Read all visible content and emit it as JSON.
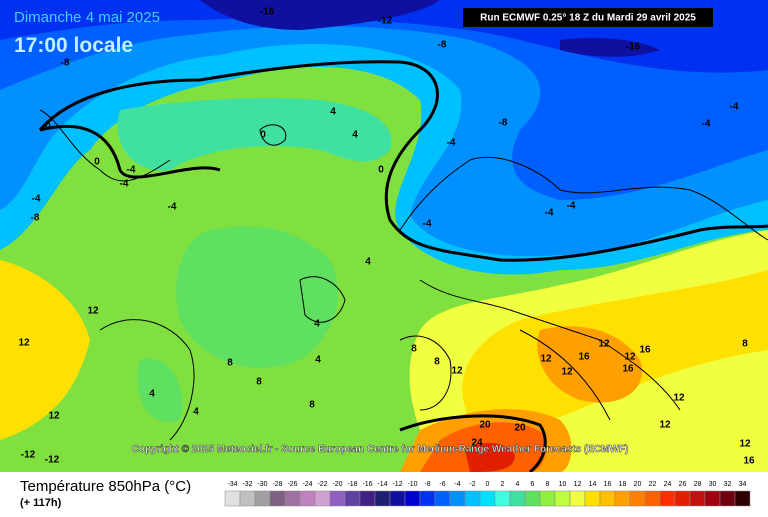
{
  "header": {
    "date": "Dimanche 4 mai 2025",
    "time": "17:00 locale",
    "run": "Run ECMWF 0.25° 18 Z du Mardi 29 avril 2025"
  },
  "copyright": "Copyright © 2025 Meteociel.fr - Source European Centre for Medium-Range Weather Forecasts (ECMWF)",
  "legend": {
    "title": "Température 850hPa (°C)",
    "lead": "(+ 117h)",
    "values": [
      -34,
      -32,
      -30,
      -28,
      -26,
      -24,
      -22,
      -20,
      -18,
      -16,
      -14,
      -12,
      -10,
      -8,
      -6,
      -4,
      -2,
      0,
      2,
      4,
      6,
      8,
      10,
      12,
      14,
      16,
      18,
      20,
      22,
      24,
      26,
      28,
      30,
      32,
      34
    ],
    "colors": [
      "#e0e0e0",
      "#c0c0c0",
      "#a0a0a0",
      "#806080",
      "#a070a0",
      "#c080c0",
      "#d0a0d0",
      "#9060c0",
      "#6040a0",
      "#402080",
      "#202070",
      "#1010a0",
      "#0000d0",
      "#0030f0",
      "#0060ff",
      "#0090ff",
      "#00c0ff",
      "#00e0ff",
      "#40ffe0",
      "#40e0a0",
      "#60e060",
      "#90f040",
      "#c0ff40",
      "#f0ff40",
      "#ffe000",
      "#ffc000",
      "#ffa000",
      "#ff8000",
      "#ff6000",
      "#ff3000",
      "#e02000",
      "#c01010",
      "#a00010",
      "#700010",
      "#300000"
    ]
  },
  "contour_labels": [
    -16,
    -12,
    -8,
    -16,
    -8,
    -8,
    -4,
    -4,
    0,
    0,
    4,
    4,
    -4,
    0,
    -4,
    -4,
    0,
    -4,
    -8,
    -4,
    -4,
    -4,
    -4,
    4,
    12,
    12,
    4,
    8,
    8,
    12,
    12,
    12,
    16,
    12,
    16,
    16,
    4,
    8,
    8,
    4,
    4,
    8,
    12,
    12,
    12,
    20,
    20,
    24,
    12,
    16,
    8,
    -12,
    -12,
    12
  ]
}
